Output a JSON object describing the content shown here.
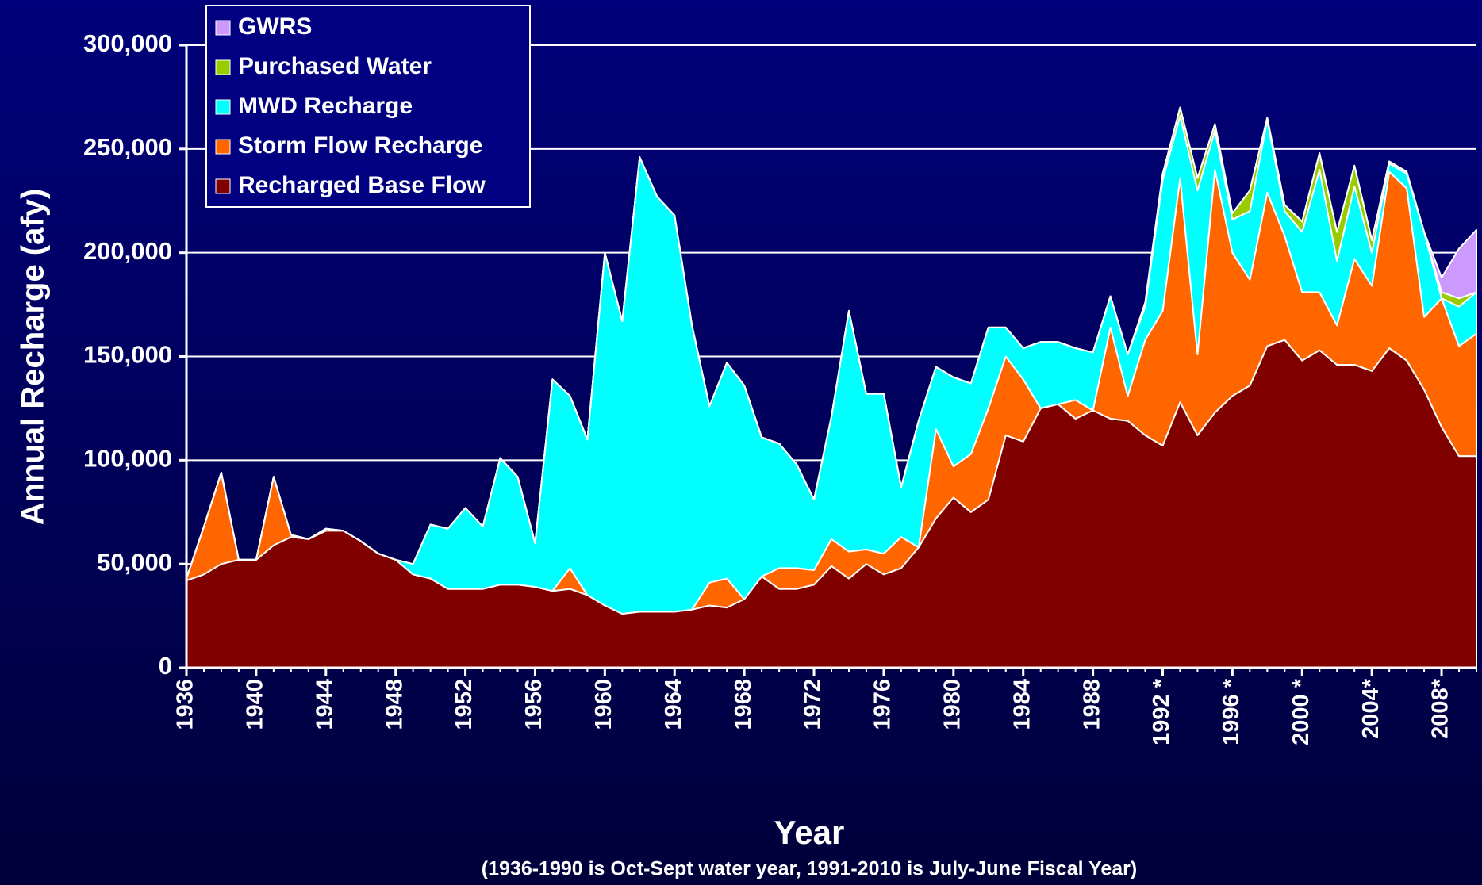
{
  "chart_data": {
    "type": "stacked_area",
    "ylabel": "Annual Recharge (afy)",
    "xlabel": "Year",
    "annotations": [
      "(1936-1990 is Oct-Sept water year, 1991-2010 is July-June Fiscal Year)"
    ],
    "x": [
      1936,
      1937,
      1938,
      1939,
      1940,
      1941,
      1942,
      1943,
      1944,
      1945,
      1946,
      1947,
      1948,
      1949,
      1950,
      1951,
      1952,
      1953,
      1954,
      1955,
      1956,
      1957,
      1958,
      1959,
      1960,
      1961,
      1962,
      1963,
      1964,
      1965,
      1966,
      1967,
      1968,
      1969,
      1970,
      1971,
      1972,
      1973,
      1974,
      1975,
      1976,
      1977,
      1978,
      1979,
      1980,
      1981,
      1982,
      1983,
      1984,
      1985,
      1986,
      1987,
      1988,
      1989,
      1990,
      1991,
      1992,
      1993,
      1994,
      1995,
      1996,
      1997,
      1998,
      1999,
      2000,
      2001,
      2002,
      2003,
      2004,
      2005,
      2006,
      2007,
      2008,
      2009,
      2010
    ],
    "xlim": [
      1936,
      2010
    ],
    "xticks": [
      1936,
      1940,
      1944,
      1948,
      1952,
      1956,
      1960,
      1964,
      1968,
      1972,
      1976,
      1980,
      1984,
      1988,
      {
        "value": 1992,
        "label": "1992 *"
      },
      {
        "value": 1996,
        "label": "1996 *"
      },
      {
        "value": 2000,
        "label": "2000 *"
      },
      {
        "value": 2004,
        "label": "2004*"
      },
      {
        "value": 2008,
        "label": "2008*"
      }
    ],
    "ylim": [
      0,
      300000
    ],
    "yticks": [
      0,
      {
        "value": 50000,
        "label": "50,000"
      },
      {
        "value": 100000,
        "label": "100,000"
      },
      {
        "value": 150000,
        "label": "150,000"
      },
      {
        "value": 200000,
        "label": "200,000"
      },
      {
        "value": 250000,
        "label": "250,000"
      },
      {
        "value": 300000,
        "label": "300,000"
      }
    ],
    "grid": true,
    "legend": "top-left",
    "series": [
      {
        "name": "Recharged Base Flow",
        "color": "#800000",
        "values": [
          42000,
          45000,
          50000,
          52000,
          52000,
          59000,
          63000,
          62000,
          66000,
          66000,
          61000,
          55000,
          52000,
          45000,
          43000,
          38000,
          38000,
          38000,
          40000,
          40000,
          39000,
          37000,
          38000,
          35000,
          30000,
          26000,
          27000,
          27000,
          27000,
          28000,
          30000,
          29000,
          33000,
          44000,
          38000,
          38000,
          40000,
          49000,
          43000,
          50000,
          45000,
          48000,
          58000,
          72000,
          82000,
          75000,
          81000,
          112000,
          109000,
          125000,
          127000,
          120000,
          124000,
          120000,
          119000,
          112000,
          107000,
          128000,
          112000,
          123000,
          131000,
          136000,
          155000,
          158000,
          148000,
          153000,
          146000,
          146000,
          143000,
          154000,
          148000,
          134000,
          116000,
          102000,
          102000
        ]
      },
      {
        "name": "Storm Flow Recharge",
        "color": "#ff6600",
        "values": [
          1000,
          23000,
          44000,
          0,
          0,
          33000,
          1000,
          0,
          1000,
          0,
          0,
          0,
          0,
          0,
          0,
          0,
          0,
          0,
          0,
          0,
          0,
          0,
          10000,
          0,
          0,
          0,
          0,
          0,
          0,
          0,
          11000,
          14000,
          0,
          0,
          10000,
          10000,
          7000,
          13000,
          13000,
          7000,
          10000,
          15000,
          0,
          43000,
          15000,
          28000,
          44000,
          38000,
          30000,
          0,
          0,
          9000,
          0,
          44000,
          12000,
          46000,
          65000,
          108000,
          39000,
          117000,
          69000,
          51000,
          74000,
          50000,
          33000,
          28000,
          19000,
          51000,
          41000,
          85000,
          83000,
          35000,
          62000,
          53000,
          59000
        ]
      },
      {
        "name": "MWD Recharge",
        "color": "#00ffff",
        "values": [
          0,
          0,
          0,
          0,
          0,
          0,
          0,
          0,
          0,
          0,
          0,
          0,
          0,
          5000,
          26000,
          29000,
          39000,
          30000,
          61000,
          52000,
          21000,
          102000,
          83000,
          75000,
          170000,
          141000,
          219000,
          200000,
          191000,
          137000,
          85000,
          104000,
          103000,
          67000,
          60000,
          50000,
          34000,
          59000,
          116000,
          75000,
          77000,
          24000,
          61000,
          30000,
          43000,
          34000,
          39000,
          14000,
          15000,
          32000,
          30000,
          25000,
          28000,
          15000,
          20000,
          16000,
          63000,
          30000,
          79000,
          19000,
          16000,
          33000,
          35000,
          12000,
          29000,
          59000,
          31000,
          35000,
          16000,
          4000,
          7000,
          41000,
          0,
          19000,
          20000
        ]
      },
      {
        "name": "Purchased Water",
        "color": "#99cc00",
        "values": [
          0,
          0,
          0,
          0,
          0,
          0,
          0,
          0,
          0,
          0,
          0,
          0,
          0,
          0,
          0,
          0,
          0,
          0,
          0,
          0,
          0,
          0,
          0,
          0,
          0,
          0,
          0,
          0,
          0,
          0,
          0,
          0,
          0,
          0,
          0,
          0,
          0,
          0,
          0,
          0,
          0,
          0,
          0,
          0,
          0,
          0,
          0,
          0,
          0,
          0,
          0,
          0,
          0,
          0,
          0,
          2000,
          3000,
          4000,
          6000,
          3000,
          3000,
          10000,
          1000,
          3000,
          5000,
          8000,
          14000,
          10000,
          6000,
          1000,
          1000,
          0,
          3000,
          4000,
          0
        ]
      },
      {
        "name": "GWRS",
        "color": "#cc99ff",
        "values": [
          0,
          0,
          0,
          0,
          0,
          0,
          0,
          0,
          0,
          0,
          0,
          0,
          0,
          0,
          0,
          0,
          0,
          0,
          0,
          0,
          0,
          0,
          0,
          0,
          0,
          0,
          0,
          0,
          0,
          0,
          0,
          0,
          0,
          0,
          0,
          0,
          0,
          0,
          0,
          0,
          0,
          0,
          0,
          0,
          0,
          0,
          0,
          0,
          0,
          0,
          0,
          0,
          0,
          0,
          0,
          0,
          0,
          0,
          0,
          0,
          0,
          0,
          0,
          0,
          0,
          0,
          0,
          0,
          0,
          0,
          0,
          0,
          7000,
          24000,
          30000
        ]
      }
    ]
  }
}
